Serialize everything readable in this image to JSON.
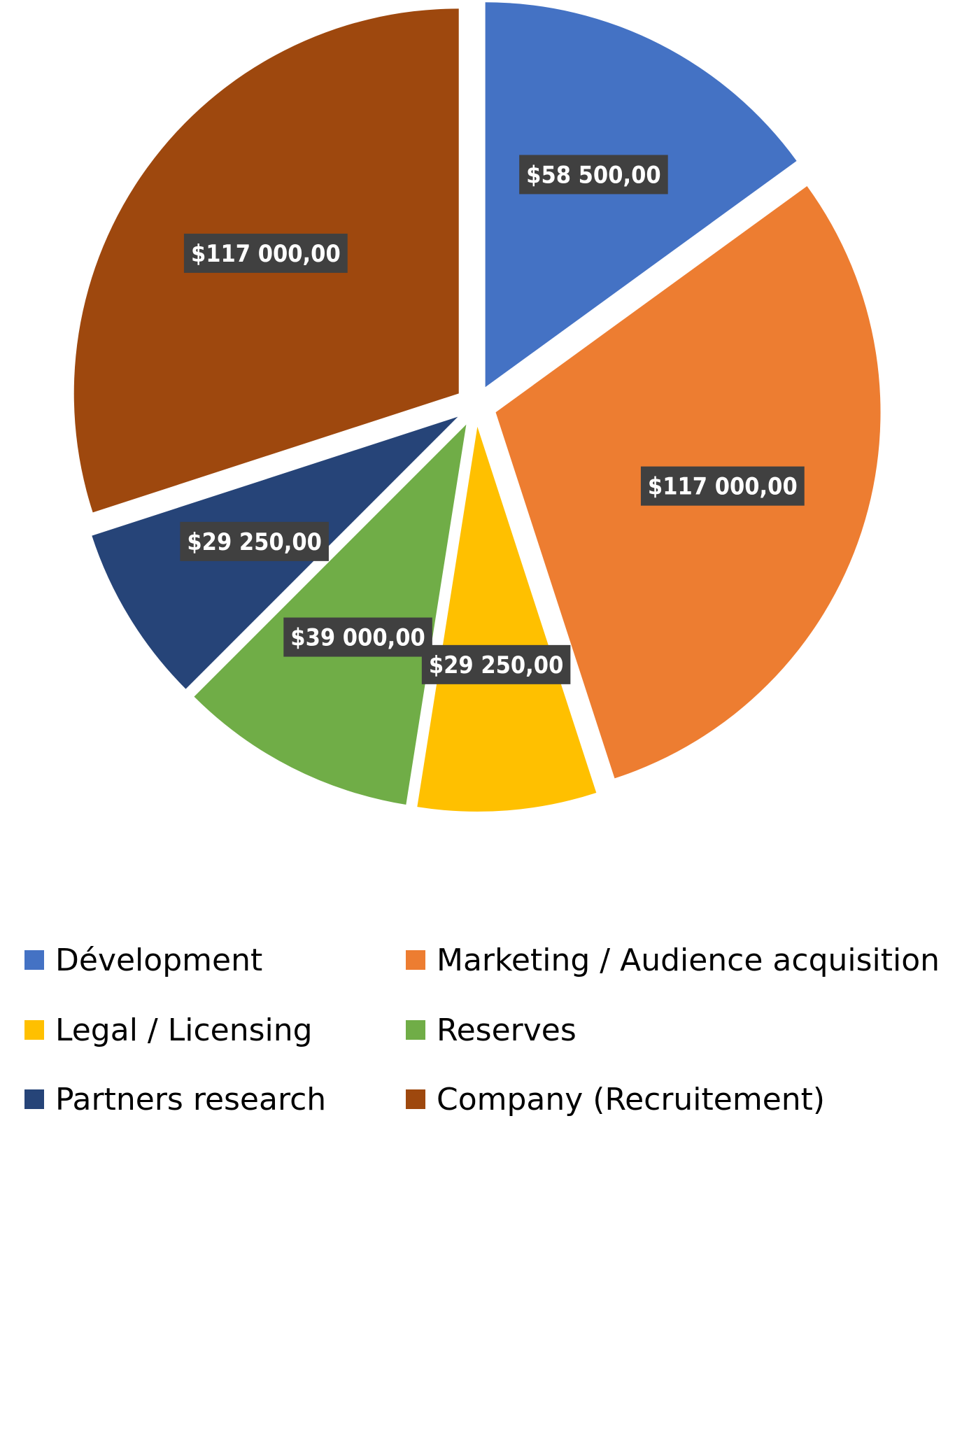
{
  "chart_data": {
    "type": "pie",
    "exploded": true,
    "data_labels": true,
    "legend_position": "bottom",
    "title": "",
    "categories": [
      "Dévelopment",
      "Marketing / Audience acquisition",
      "Legal / Licensing",
      "Reserves",
      "Partners research",
      "Company (Recruitement)"
    ],
    "values": [
      58500,
      117000,
      29250,
      39000,
      29250,
      117000
    ],
    "value_labels": [
      "$58 500,00",
      "$117 000,00",
      "$29 250,00",
      "$39 000,00",
      "$29 250,00",
      "$117 000,00"
    ],
    "colors": [
      "#4472C4",
      "#ED7D31",
      "#FFC000",
      "#70AD47",
      "#264478",
      "#9E480E"
    ]
  }
}
